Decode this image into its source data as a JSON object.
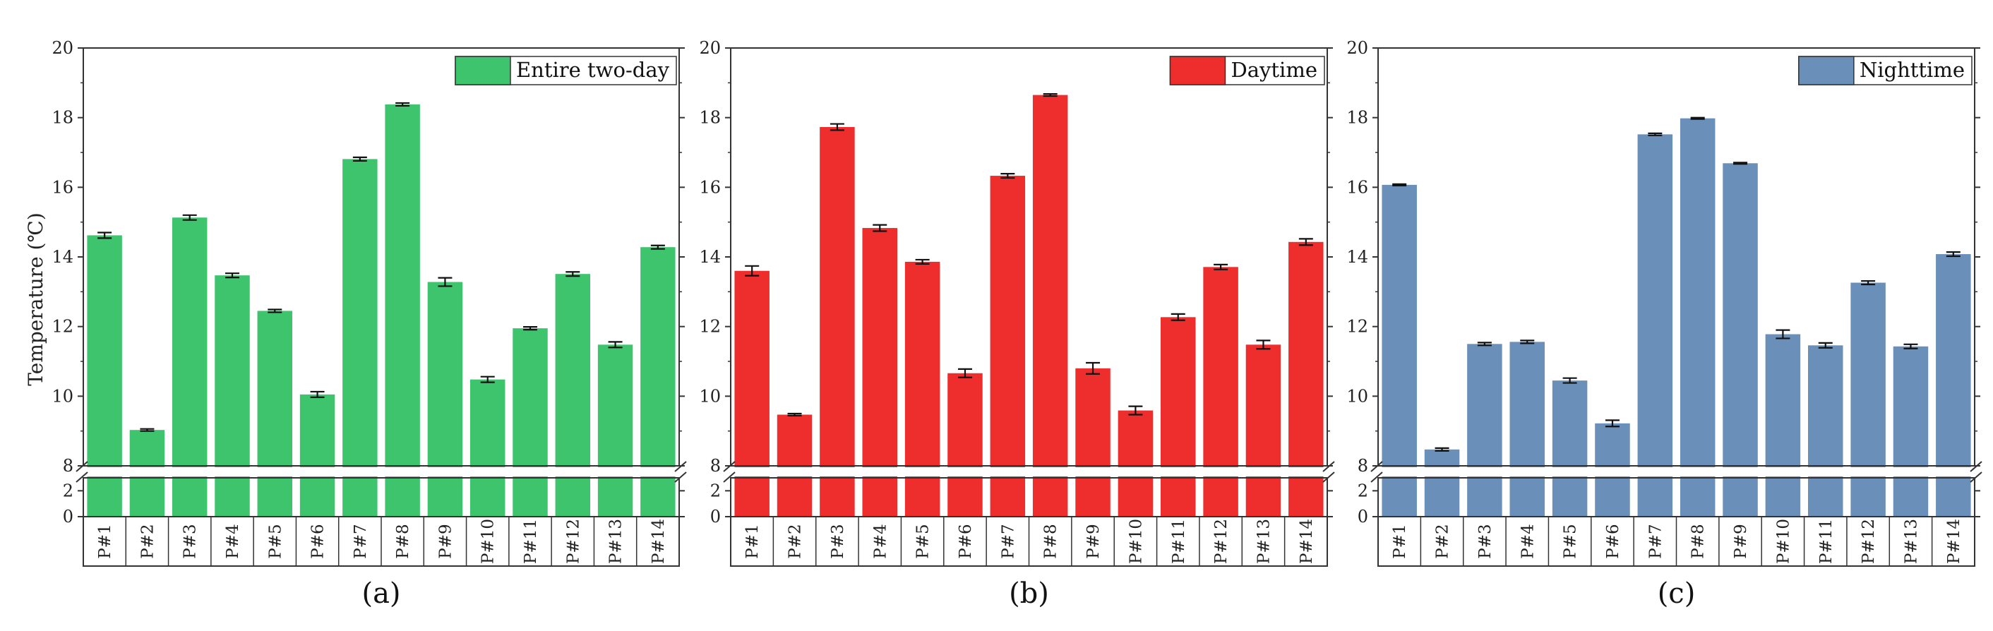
{
  "chart_data": [
    {
      "type": "bar",
      "panel_label": "(a)",
      "ylabel": "Temperature (℃)",
      "categories": [
        "P#1",
        "P#2",
        "P#3",
        "P#4",
        "P#5",
        "P#6",
        "P#7",
        "P#8",
        "P#9",
        "P#10",
        "P#11",
        "P#12",
        "P#13",
        "P#14"
      ],
      "series": [
        {
          "name": "Entire two-day",
          "color": "#3ec46d",
          "values": [
            14.62,
            9.03,
            15.13,
            13.47,
            12.45,
            10.05,
            16.81,
            18.38,
            13.28,
            10.48,
            11.95,
            13.51,
            11.48,
            14.28
          ],
          "errors": [
            0.08,
            0.03,
            0.07,
            0.06,
            0.04,
            0.08,
            0.05,
            0.04,
            0.12,
            0.08,
            0.04,
            0.06,
            0.08,
            0.05
          ]
        }
      ],
      "ylim": [
        0,
        20
      ],
      "axis_break": [
        3,
        8
      ],
      "lower_ticks": [
        0,
        2
      ],
      "upper_ticks": [
        8,
        10,
        12,
        14,
        16,
        18,
        20
      ],
      "legend_position": "top-right"
    },
    {
      "type": "bar",
      "panel_label": "(b)",
      "ylabel": "",
      "categories": [
        "P#1",
        "P#2",
        "P#3",
        "P#4",
        "P#5",
        "P#6",
        "P#7",
        "P#8",
        "P#9",
        "P#10",
        "P#11",
        "P#12",
        "P#13",
        "P#14"
      ],
      "series": [
        {
          "name": "Daytime",
          "color": "#ee2d2d",
          "values": [
            13.6,
            9.47,
            17.73,
            14.83,
            13.86,
            10.66,
            16.33,
            18.65,
            10.8,
            9.59,
            12.27,
            13.71,
            11.48,
            14.43
          ],
          "errors": [
            0.14,
            0.03,
            0.09,
            0.09,
            0.06,
            0.12,
            0.06,
            0.03,
            0.16,
            0.12,
            0.09,
            0.07,
            0.12,
            0.09
          ]
        }
      ],
      "ylim": [
        0,
        20
      ],
      "axis_break": [
        3,
        8
      ],
      "lower_ticks": [
        0,
        2
      ],
      "upper_ticks": [
        8,
        10,
        12,
        14,
        16,
        18,
        20
      ],
      "legend_position": "top-right"
    },
    {
      "type": "bar",
      "panel_label": "(c)",
      "ylabel": "",
      "categories": [
        "P#1",
        "P#2",
        "P#3",
        "P#4",
        "P#5",
        "P#6",
        "P#7",
        "P#8",
        "P#9",
        "P#10",
        "P#11",
        "P#12",
        "P#13",
        "P#14"
      ],
      "series": [
        {
          "name": "Nighttime",
          "color": "#6a8fb8",
          "values": [
            16.07,
            8.47,
            11.5,
            11.56,
            10.45,
            9.22,
            17.52,
            17.98,
            16.69,
            11.78,
            11.46,
            13.26,
            11.43,
            14.08
          ],
          "errors": [
            0.02,
            0.04,
            0.04,
            0.04,
            0.07,
            0.09,
            0.03,
            0.02,
            0.02,
            0.12,
            0.07,
            0.05,
            0.06,
            0.06
          ]
        }
      ],
      "ylim": [
        0,
        20
      ],
      "axis_break": [
        3,
        8
      ],
      "lower_ticks": [
        0,
        2
      ],
      "upper_ticks": [
        8,
        10,
        12,
        14,
        16,
        18,
        20
      ],
      "legend_position": "top-right"
    }
  ]
}
